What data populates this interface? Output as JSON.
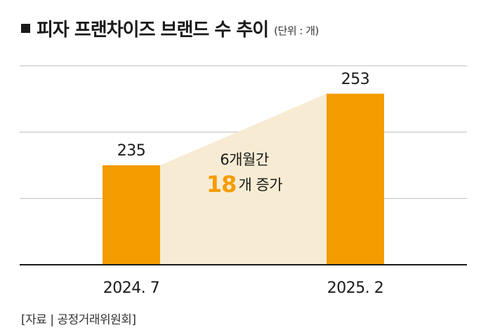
{
  "header": {
    "title": "피자 프랜차이즈 브랜드 수 추이",
    "unit": "(단위 : 개)"
  },
  "annotation": {
    "line1": "6개월간",
    "highlight": "18",
    "line2_rest": "개 증가"
  },
  "source": "[자료 | 공정거래위원회]",
  "colors": {
    "bar": "#f49c00",
    "connector": "#f7ecd3",
    "highlight": "#f49c00",
    "grid": "#bdbdbd",
    "axis": "#1a1a1a"
  },
  "chart_data": {
    "type": "bar",
    "categories": [
      "2024. 7",
      "2025. 2"
    ],
    "values": [
      235,
      253
    ],
    "data_labels": [
      "235",
      "253"
    ],
    "title": "피자 프랜차이즈 브랜드 수 추이",
    "unit": "(단위 : 개)",
    "ylim": [
      210,
      260
    ],
    "grid": true,
    "gridlines_count": 3
  }
}
